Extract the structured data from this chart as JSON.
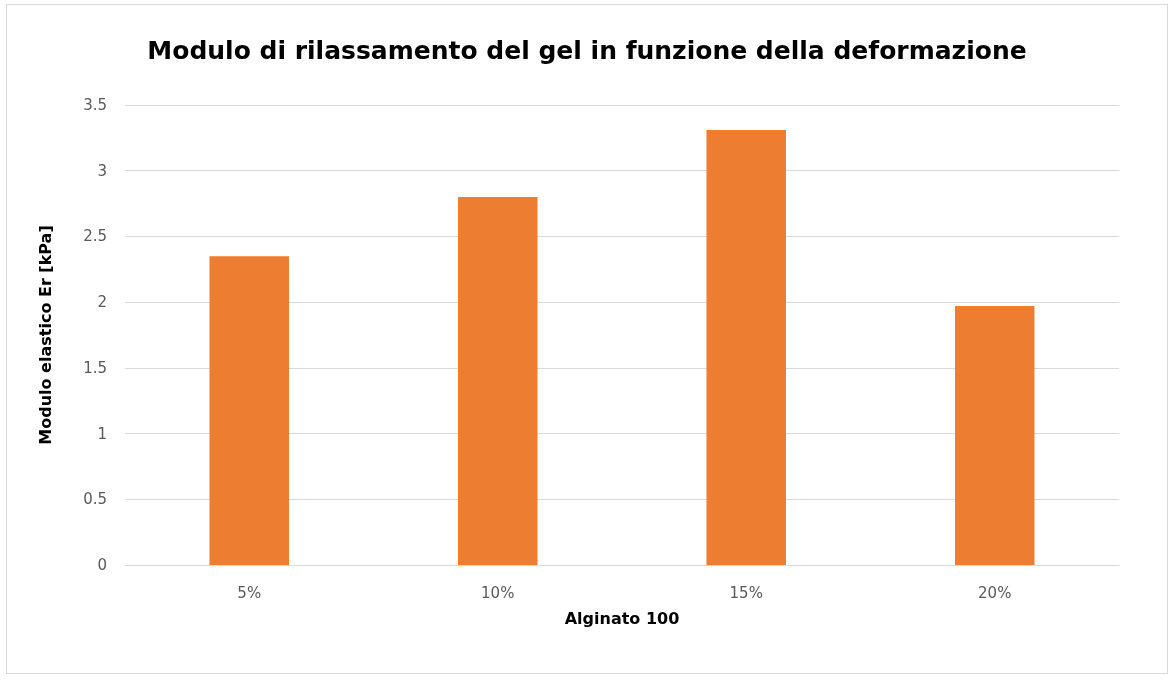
{
  "chart_data": {
    "type": "bar",
    "title": "Modulo di rilassamento del gel in funzione della deformazione",
    "xlabel": "Alginato 100",
    "ylabel": "Modulo elastico Er [kPa]",
    "categories": [
      "5%",
      "10%",
      "15%",
      "20%"
    ],
    "values": [
      2.35,
      2.8,
      3.31,
      1.97
    ],
    "color": "#ed7d31",
    "ylim": [
      0,
      3.5
    ],
    "yticks": [
      0,
      0.5,
      1,
      1.5,
      2,
      2.5,
      3,
      3.5
    ],
    "grid": "y"
  }
}
